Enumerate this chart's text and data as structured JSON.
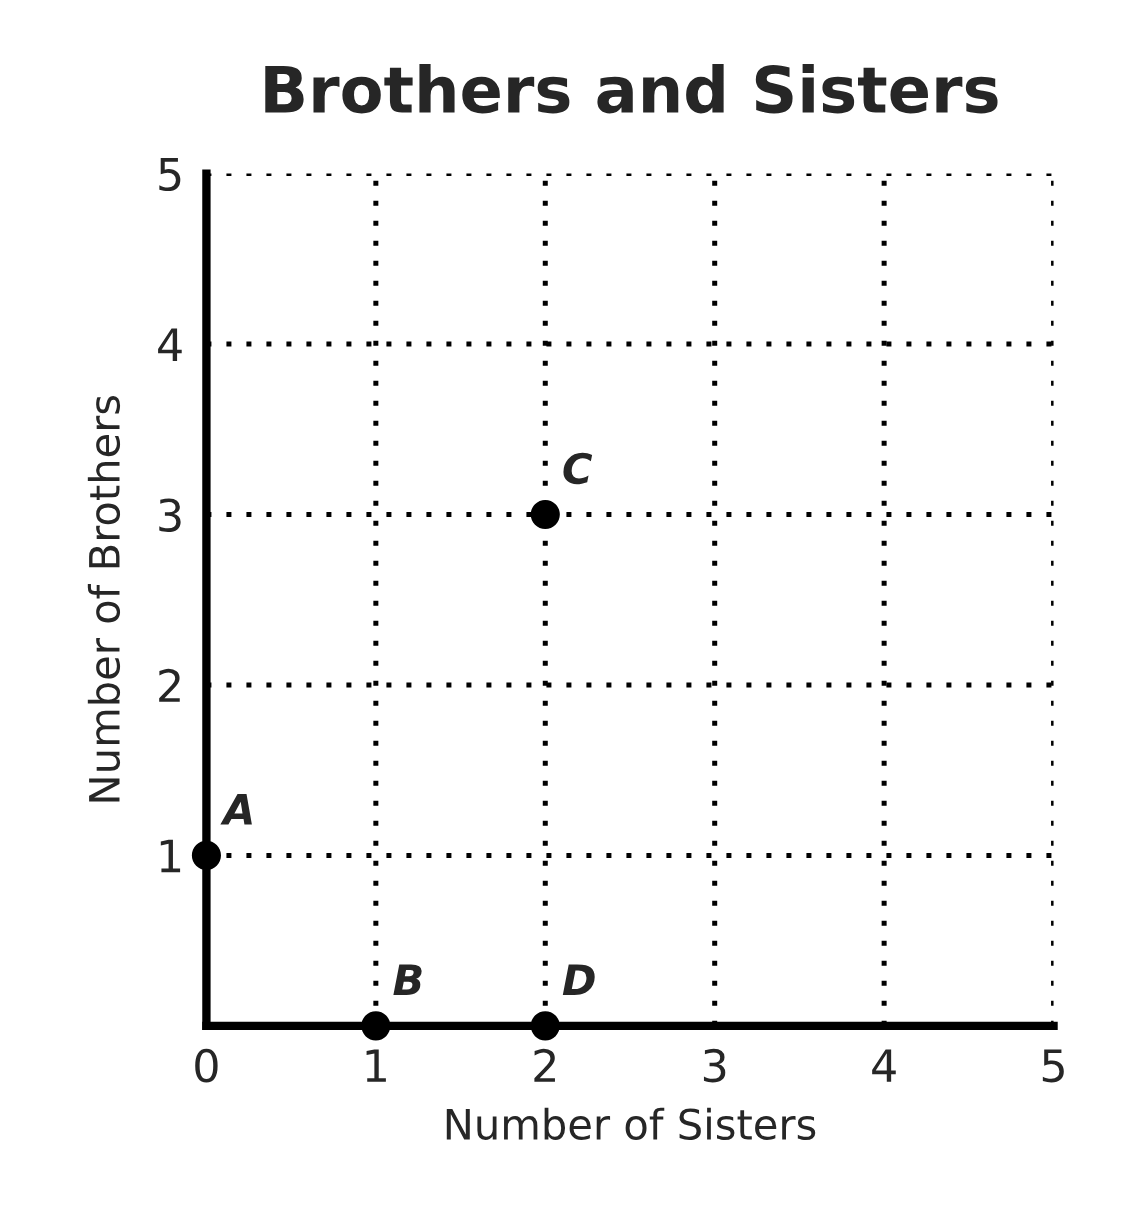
{
  "chart_data": {
    "type": "scatter",
    "title": "Brothers and Sisters",
    "xlabel": "Number of Sisters",
    "ylabel": "Number of Brothers",
    "x": [
      0,
      1,
      2,
      2
    ],
    "values": [
      1,
      0,
      3,
      0
    ],
    "color": "#000000",
    "marker": "circle",
    "xlim": [
      0,
      5
    ],
    "ylim": [
      0,
      5
    ],
    "xticks": [
      0,
      1,
      2,
      3,
      4,
      5
    ],
    "yticks": [
      1,
      2,
      3,
      4,
      5
    ],
    "grid": true,
    "annotations": [
      {
        "text": "A",
        "x": 0,
        "y": 1
      },
      {
        "text": "B",
        "x": 1,
        "y": 0
      },
      {
        "text": "C",
        "x": 2,
        "y": 3
      },
      {
        "text": "D",
        "x": 2,
        "y": 0
      }
    ]
  }
}
